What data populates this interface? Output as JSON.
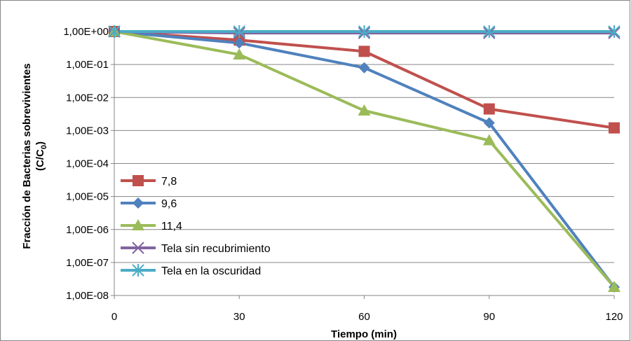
{
  "chart_data": {
    "type": "line",
    "xlabel": "Tiempo (min)",
    "ylabel": {
      "main": "Fracción de Bacterias sobrevivientes",
      "unit_prefix": "(C/C",
      "unit_sub": "0",
      "unit_suffix": ")"
    },
    "x": [
      0,
      30,
      60,
      90,
      120
    ],
    "x_tick_labels": [
      "0",
      "30",
      "60",
      "90",
      "120"
    ],
    "y_scale": "log",
    "ylim": [
      1e-08,
      1
    ],
    "y_tick_values": [
      1,
      0.1,
      0.01,
      0.001,
      0.0001,
      1e-05,
      1e-06,
      1e-07,
      1e-08
    ],
    "y_tick_labels": [
      "1,00E+00",
      "1,00E-01",
      "1,00E-02",
      "1,00E-03",
      "1,00E-04",
      "1,00E-05",
      "1,00E-06",
      "1,00E-07",
      "1,00E-08"
    ],
    "grid": "horizontal",
    "legend_position": "left",
    "series": [
      {
        "name": "7,8",
        "color": "#C0504D",
        "marker": "square",
        "values": [
          1,
          0.55,
          0.25,
          0.0045,
          0.0012
        ]
      },
      {
        "name": "9,6",
        "color": "#4F81BD",
        "marker": "diamond",
        "values": [
          1,
          0.45,
          0.08,
          0.0017,
          1.8e-08
        ]
      },
      {
        "name": "11,4",
        "color": "#9BBB59",
        "marker": "triangle",
        "values": [
          1,
          0.2,
          0.004,
          0.0005,
          1.8e-08
        ]
      },
      {
        "name": "Tela sin recubrimiento",
        "color": "#8064A2",
        "marker": "x",
        "values": [
          1,
          0.9,
          0.9,
          0.9,
          0.9
        ]
      },
      {
        "name": "Tela en la oscuridad",
        "color": "#4BACC6",
        "marker": "star",
        "values": [
          1,
          1,
          1,
          1,
          1
        ]
      }
    ]
  }
}
